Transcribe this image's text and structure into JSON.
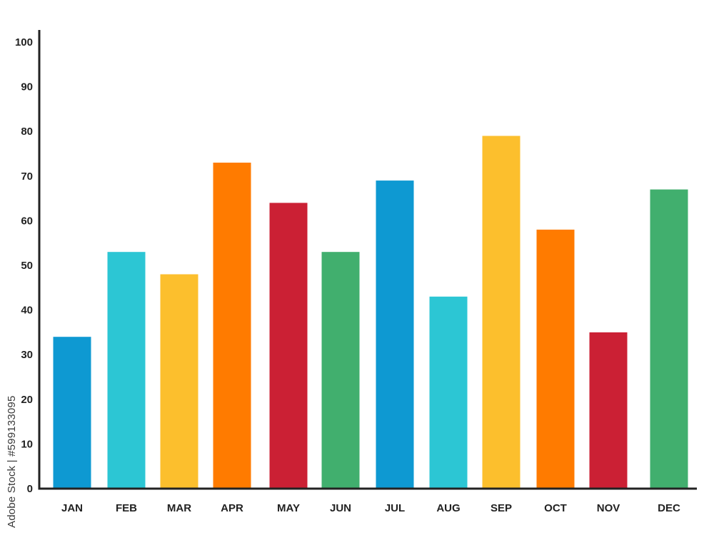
{
  "chart_data": {
    "type": "bar",
    "title": "",
    "xlabel": "",
    "ylabel": "",
    "categories": [
      "JAN",
      "FEB",
      "MAR",
      "APR",
      "MAY",
      "JUN",
      "JUL",
      "AUG",
      "SEP",
      "OCT",
      "NOV",
      "DEC"
    ],
    "values": [
      34,
      53,
      48,
      73,
      64,
      53,
      69,
      43,
      79,
      58,
      35,
      67
    ],
    "colors": [
      "#0E99D2",
      "#2CC6D4",
      "#FCBF2D",
      "#FF7B00",
      "#CB2034",
      "#41AF6E",
      "#0E99D2",
      "#2CC6D4",
      "#FCBF2D",
      "#FF7B00",
      "#CB2034",
      "#41AF6E"
    ],
    "ylim": [
      0,
      100
    ],
    "yticks": [
      0,
      10,
      20,
      30,
      40,
      50,
      60,
      70,
      80,
      90,
      100
    ],
    "grid": false,
    "legend": "none",
    "axis_color": "#222222"
  },
  "watermark": {
    "side_text": "Adobe Stock | #599133095"
  }
}
